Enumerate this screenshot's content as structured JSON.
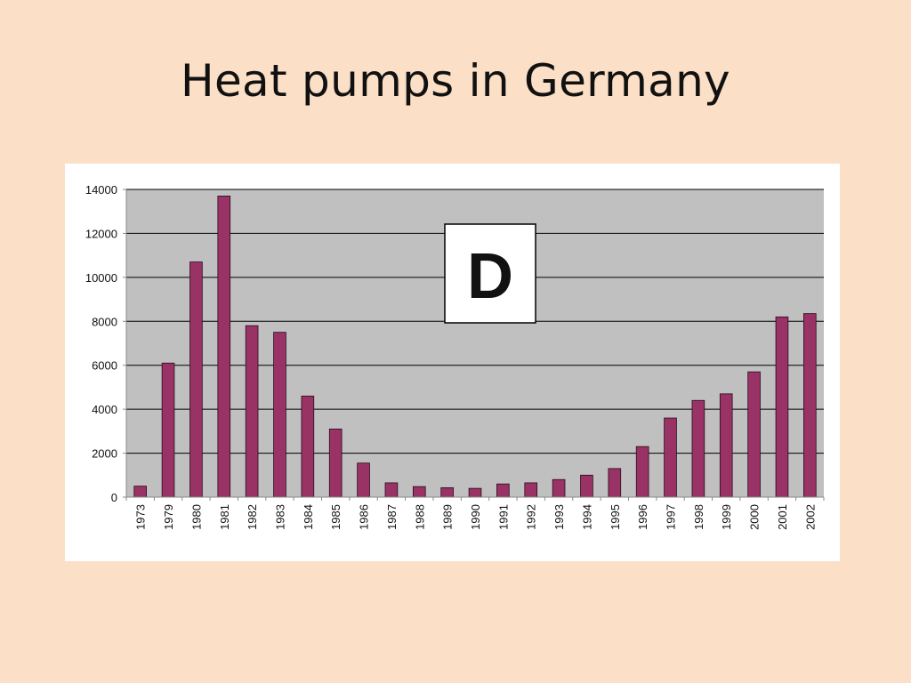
{
  "slide": {
    "title": "Heat pumps in Germany"
  },
  "colors": {
    "background": "#fbdfc6",
    "plot_area": "#c0c0c0",
    "bar_fill": "#993366",
    "gridline": "#000000"
  },
  "chart_data": {
    "type": "bar",
    "title": "",
    "xlabel": "",
    "ylabel": "",
    "ylim": [
      0,
      14000
    ],
    "yticks": [
      0,
      2000,
      4000,
      6000,
      8000,
      10000,
      12000,
      14000
    ],
    "grid": true,
    "legend": "none",
    "annotation": "D",
    "categories": [
      "1973",
      "1979",
      "1980",
      "1981",
      "1982",
      "1983",
      "1984",
      "1985",
      "1986",
      "1987",
      "1988",
      "1989",
      "1990",
      "1991",
      "1992",
      "1993",
      "1994",
      "1995",
      "1996",
      "1997",
      "1998",
      "1999",
      "2000",
      "2001",
      "2002"
    ],
    "values": [
      500,
      6100,
      10700,
      13700,
      7800,
      7500,
      4600,
      3100,
      1550,
      650,
      480,
      430,
      400,
      600,
      650,
      800,
      1000,
      1300,
      2300,
      3600,
      4400,
      4700,
      5700,
      8200,
      8350
    ]
  }
}
